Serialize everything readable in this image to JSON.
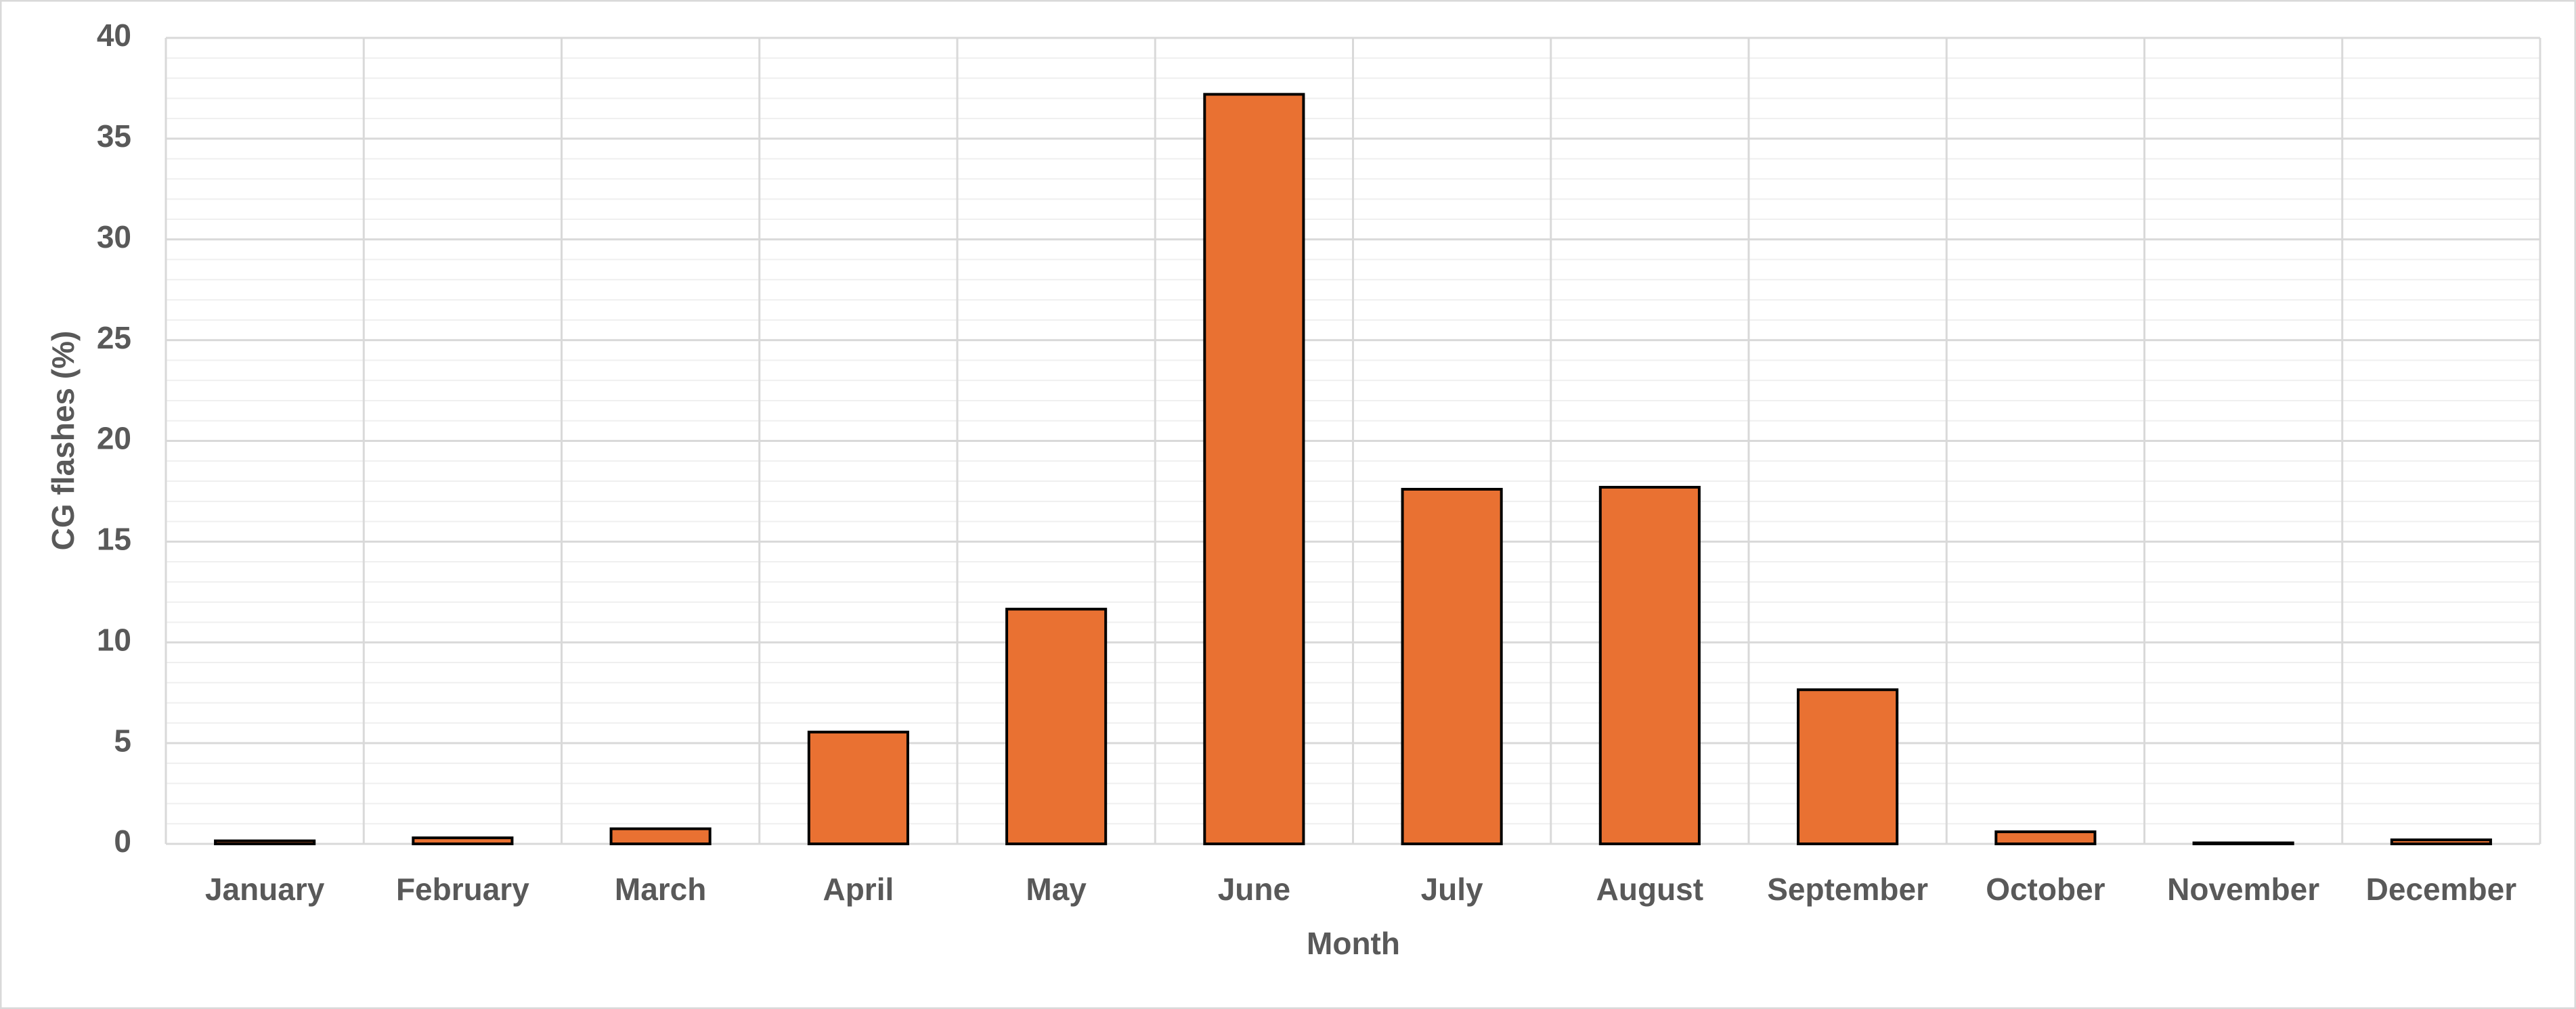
{
  "chart_data": {
    "type": "bar",
    "x_label": "Month",
    "y_label": "CG flashes (%)",
    "categories": [
      "January",
      "February",
      "March",
      "April",
      "May",
      "June",
      "July",
      "August",
      "September",
      "October",
      "November",
      "December"
    ],
    "values": [
      0.15,
      0.3,
      0.75,
      5.55,
      11.65,
      37.2,
      17.6,
      17.7,
      7.65,
      0.6,
      0.05,
      0.2
    ],
    "color": "#e97132",
    "ylim": [
      0,
      40
    ],
    "yticks": [
      0,
      5,
      10,
      15,
      20,
      25,
      30,
      35,
      40
    ],
    "grid": true,
    "minor_grid_divisions": 5
  }
}
